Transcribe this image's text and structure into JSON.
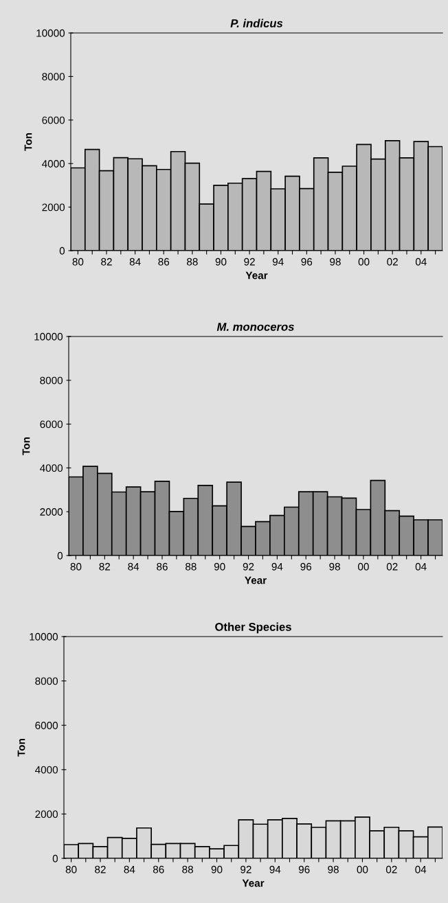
{
  "chart_data": [
    {
      "type": "bar",
      "title": "P. indicus",
      "xlabel": "Year",
      "ylabel": "Ton",
      "color": "#b8b8b8",
      "ylim": [
        0,
        10000
      ],
      "yticks": [
        0,
        2000,
        4000,
        6000,
        8000,
        10000
      ],
      "categories": [
        "80",
        null,
        "82",
        null,
        "84",
        null,
        "86",
        null,
        "88",
        null,
        "90",
        null,
        "92",
        null,
        "94",
        null,
        "96",
        null,
        "98",
        null,
        "00",
        null,
        "02",
        null,
        "04",
        null
      ],
      "values": [
        3800,
        4650,
        3670,
        4270,
        4220,
        3900,
        3730,
        4550,
        4020,
        2140,
        3000,
        3100,
        3310,
        3640,
        2840,
        3420,
        2850,
        4260,
        3600,
        3880,
        4880,
        4210,
        5050,
        4260,
        5010,
        4780
      ]
    },
    {
      "type": "bar",
      "title": "M. monoceros",
      "xlabel": "Year",
      "ylabel": "Ton",
      "color": "#8e8e8e",
      "ylim": [
        0,
        10000
      ],
      "yticks": [
        0,
        2000,
        4000,
        6000,
        8000,
        10000
      ],
      "categories": [
        "80",
        null,
        "82",
        null,
        "84",
        null,
        "86",
        null,
        "88",
        null,
        "90",
        null,
        "92",
        null,
        "94",
        null,
        "96",
        null,
        "98",
        null,
        "00",
        null,
        "02",
        null,
        "04",
        null
      ],
      "values": [
        3590,
        4070,
        3750,
        2900,
        3130,
        2910,
        3390,
        2010,
        2610,
        3200,
        2270,
        3350,
        1330,
        1550,
        1830,
        2210,
        2910,
        2910,
        2680,
        2620,
        2100,
        3430,
        2050,
        1800,
        1630,
        1630
      ]
    },
    {
      "type": "bar",
      "title": "Other Species",
      "xlabel": "Year",
      "ylabel": "Ton",
      "color": "#d8d8d8",
      "ylim": [
        0,
        10000
      ],
      "yticks": [
        0,
        2000,
        4000,
        6000,
        8000,
        10000
      ],
      "categories": [
        "80",
        null,
        "82",
        null,
        "84",
        null,
        "86",
        null,
        "88",
        null,
        "90",
        null,
        "92",
        null,
        "94",
        null,
        "96",
        null,
        "98",
        null,
        "00",
        null,
        "02",
        null,
        "04",
        null
      ],
      "values": [
        620,
        670,
        530,
        940,
        900,
        1370,
        630,
        670,
        670,
        530,
        430,
        580,
        1740,
        1540,
        1740,
        1800,
        1550,
        1400,
        1690,
        1690,
        1860,
        1240,
        1400,
        1240,
        970,
        1410
      ]
    }
  ]
}
